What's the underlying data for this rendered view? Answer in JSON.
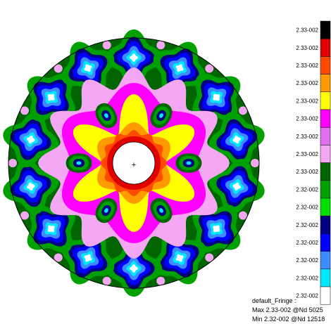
{
  "legend": {
    "labels": [
      "2.33-002",
      "2.33-002",
      "2.33-002",
      "2.33-002",
      "2.33-002",
      "2.33-002",
      "2.33-002",
      "2.33-002",
      "2.33-002",
      "2.32-002",
      "2.32-002",
      "2.32-002",
      "2.32-002",
      "2.32-002",
      "2.32-002",
      "2.32-002"
    ],
    "colors": [
      "#000000",
      "#e00000",
      "#ff4a00",
      "#ff9a00",
      "#ffff00",
      "#ff00ff",
      "#e070f0",
      "#f4a8f4",
      "#006400",
      "#00a000",
      "#00e000",
      "#000080",
      "#0000ff",
      "#3c8cff",
      "#00e8ff",
      "#ffffff"
    ]
  },
  "footer": [
    "default_Fringe :",
    "Max 2.33-002 @Nd 5025",
    "Min 2.32-002 @Nd 12518"
  ],
  "center_marker": "+"
}
